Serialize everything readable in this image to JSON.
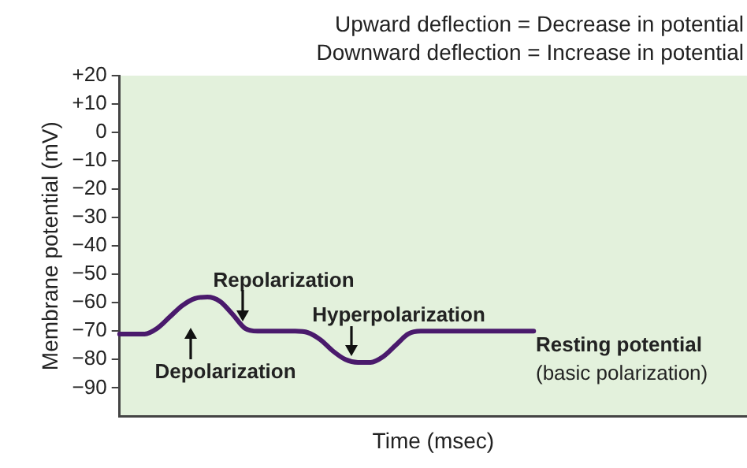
{
  "chart_data": {
    "type": "line",
    "xlabel": "Time (msec)",
    "ylabel": "Membrane potential (mV)",
    "annotations": [
      "Upward deflection = Decrease in potential",
      "Downward deflection = Increase in potential",
      "Depolarization",
      "Repolarization",
      "Hyperpolarization",
      "Resting potential",
      "(basic polarization)"
    ],
    "categories": [
      null,
      null,
      null,
      null,
      null,
      null,
      null,
      null,
      null,
      null,
      null,
      null,
      null,
      null,
      null,
      null,
      null,
      null,
      null,
      null,
      null,
      null,
      null,
      null,
      null,
      null,
      null,
      null,
      null,
      null,
      null,
      null,
      null,
      null,
      null,
      null,
      null,
      null,
      null,
      null,
      null,
      null,
      null,
      null,
      null,
      null,
      null,
      null,
      null,
      null,
      null
    ],
    "series": [
      {
        "color": "#4a1a6c",
        "values": [
          -71,
          -71,
          -71,
          -69,
          -65,
          -61,
          -58.5,
          -58,
          -59.5,
          -64,
          -69,
          -70,
          -70,
          -70,
          -70,
          -70.5,
          -73,
          -77,
          -80,
          -81,
          -81,
          -79,
          -75,
          -71,
          -70,
          -70,
          -70,
          -70,
          -70,
          -70,
          -70,
          -70,
          -70,
          -70,
          null,
          null,
          null,
          null,
          null,
          null,
          null,
          null,
          null,
          null,
          null,
          null,
          null,
          null,
          null,
          null,
          null
        ]
      }
    ],
    "ylim": [
      -100,
      20
    ],
    "yticks": [
      {
        "value": 20,
        "label": "+20"
      },
      {
        "value": 10,
        "label": "+10"
      },
      0,
      {
        "value": -10,
        "label": "−10"
      },
      {
        "value": -20,
        "label": "−20"
      },
      {
        "value": -30,
        "label": "−30"
      },
      {
        "value": -40,
        "label": "−40"
      },
      {
        "value": -50,
        "label": "−50"
      },
      {
        "value": -60,
        "label": "−60"
      },
      {
        "value": -70,
        "label": "−70"
      },
      {
        "value": -80,
        "label": "−80"
      },
      {
        "value": -90,
        "label": "−90"
      }
    ],
    "grid": false,
    "legend": false,
    "tick_labels": "y",
    "marker": "none",
    "line_style": "solid"
  }
}
